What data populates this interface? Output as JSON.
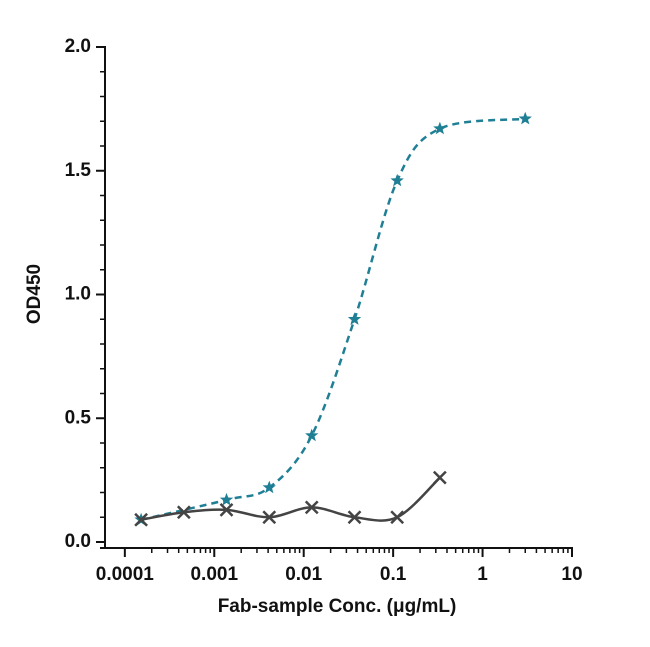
{
  "chart_data": {
    "type": "scatter",
    "xlabel": "Fab-sample Conc. (μg/mL)",
    "ylabel": "OD450",
    "xscale": "log",
    "xlim": [
      6e-05,
      10
    ],
    "ylim": [
      0,
      2
    ],
    "xticks": [
      0.0001,
      0.001,
      0.01,
      0.1,
      1,
      10
    ],
    "yticks": [
      {
        "value": 0,
        "label": "0.0"
      },
      {
        "value": 0.5,
        "label": "0.5"
      },
      {
        "value": 1,
        "label": "1.0"
      },
      {
        "value": 1.5,
        "label": "1.5"
      },
      {
        "value": 2,
        "label": "2.0"
      }
    ],
    "series": [
      {
        "color": "#1f7f95",
        "marker": "star",
        "line": "dashed",
        "x": [
          0.000152,
          0.00137,
          0.00412,
          0.0123,
          0.037,
          0.111,
          0.333,
          3
        ],
        "values": [
          0.09,
          0.17,
          0.22,
          0.43,
          0.9,
          1.46,
          1.67,
          1.71
        ]
      },
      {
        "color": "#444444",
        "marker": "x",
        "line": "solid",
        "x": [
          0.000152,
          0.000457,
          0.00137,
          0.00412,
          0.0123,
          0.037,
          0.111,
          0.333
        ],
        "values": [
          0.09,
          0.12,
          0.13,
          0.1,
          0.14,
          0.1,
          0.1,
          0.26
        ]
      }
    ]
  }
}
